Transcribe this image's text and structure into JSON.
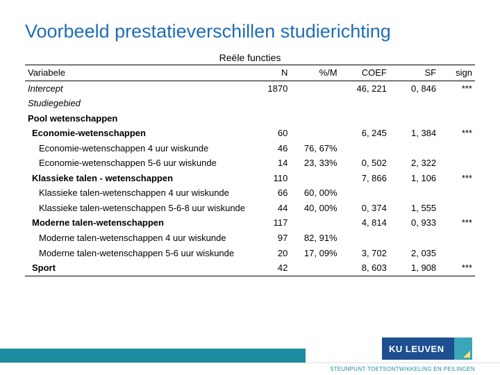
{
  "title": "Voorbeeld prestatieverschillen studierichting",
  "caption": "Reële functies",
  "columns": [
    "Variabele",
    "N",
    "%/M",
    "COEF",
    "SF",
    "sign"
  ],
  "rows": [
    {
      "label": "Intercept",
      "italic": true,
      "indent": 0,
      "N": "1870",
      "pct": "",
      "coef": "46, 221",
      "sf": "0, 846",
      "sign": "***"
    },
    {
      "label": "Studiegebied",
      "italic": true,
      "indent": 0,
      "N": "",
      "pct": "",
      "coef": "",
      "sf": "",
      "sign": ""
    },
    {
      "label": "Pool wetenschappen",
      "bold": true,
      "indent": 0,
      "N": "",
      "pct": "",
      "coef": "",
      "sf": "",
      "sign": ""
    },
    {
      "label": "Economie-wetenschappen",
      "bold": true,
      "indent": 1,
      "N": "60",
      "pct": "",
      "coef": "6, 245",
      "sf": "1, 384",
      "sign": "***"
    },
    {
      "label": "Economie-wetenschappen 4 uur wiskunde",
      "indent": 2,
      "N": "46",
      "pct": "76, 67%",
      "coef": "",
      "sf": "",
      "sign": ""
    },
    {
      "label": "Economie-wetenschappen 5-6 uur wiskunde",
      "indent": 2,
      "N": "14",
      "pct": "23, 33%",
      "coef": "0, 502",
      "sf": "2, 322",
      "sign": ""
    },
    {
      "label": "Klassieke talen - wetenschappen",
      "bold": true,
      "indent": 1,
      "N": "110",
      "pct": "",
      "coef": "7, 866",
      "sf": "1, 106",
      "sign": "***"
    },
    {
      "label": "Klassieke talen-wetenschappen 4 uur wiskunde",
      "indent": 2,
      "N": "66",
      "pct": "60, 00%",
      "coef": "",
      "sf": "",
      "sign": ""
    },
    {
      "label": "Klassieke talen-wetenschappen 5-6-8 uur wiskunde",
      "indent": 2,
      "N": "44",
      "pct": "40, 00%",
      "coef": "0, 374",
      "sf": "1, 555",
      "sign": ""
    },
    {
      "label": "Moderne talen-wetenschappen",
      "bold": true,
      "indent": 1,
      "N": "117",
      "pct": "",
      "coef": "4, 814",
      "sf": "0, 933",
      "sign": "***"
    },
    {
      "label": "Moderne talen-wetenschappen 4 uur wiskunde",
      "indent": 2,
      "N": "97",
      "pct": "82, 91%",
      "coef": "",
      "sf": "",
      "sign": ""
    },
    {
      "label": "Moderne talen-wetenschappen 5-6 uur wiskunde",
      "indent": 2,
      "N": "20",
      "pct": "17, 09%",
      "coef": "3, 702",
      "sf": "2, 035",
      "sign": ""
    },
    {
      "label": "Sport",
      "bold": true,
      "indent": 1,
      "rule": true,
      "N": "42",
      "pct": "",
      "coef": "8, 603",
      "sf": "1, 908",
      "sign": "***"
    }
  ],
  "logo_text": "KU LEUVEN",
  "credit": "STEUNPUNT TOETSONTWIKKELING EN PEILINGEN",
  "colors": {
    "title": "#1f6db5",
    "teal": "#1b8da0",
    "logo_bg": "#1d4f91",
    "logo_accent": "#3aa6b9",
    "logo_tri": "#f7e36b"
  }
}
